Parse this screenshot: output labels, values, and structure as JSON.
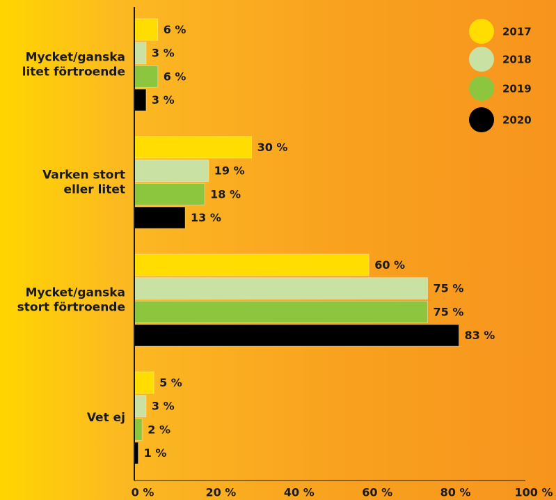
{
  "chart_data": {
    "type": "bar",
    "orientation": "horizontal",
    "categories": [
      [
        "Mycket/ganska",
        "litet förtroende"
      ],
      [
        "Varken stort",
        "eller litet"
      ],
      [
        "Mycket/ganska",
        "stort förtroende"
      ],
      [
        "Vet ej"
      ]
    ],
    "series": [
      {
        "name": "2017",
        "color": "#ffdd00",
        "values": [
          6,
          30,
          60,
          5
        ],
        "value_labels": [
          "6 %",
          "30 %",
          "60 %",
          "5 %"
        ]
      },
      {
        "name": "2018",
        "color": "#c9e2a3",
        "values": [
          3,
          19,
          75,
          3
        ],
        "value_labels": [
          "3 %",
          "19 %",
          "75 %",
          "3 %"
        ]
      },
      {
        "name": "2019",
        "color": "#8cc63f",
        "values": [
          6,
          18,
          75,
          2
        ],
        "value_labels": [
          "6 %",
          "18 %",
          "75 %",
          "2 %"
        ]
      },
      {
        "name": "2020",
        "color": "#000000",
        "values": [
          3,
          13,
          83,
          1
        ],
        "value_labels": [
          "3 %",
          "13 %",
          "83 %",
          "1 %"
        ]
      }
    ],
    "xlim": [
      0,
      100
    ],
    "xticks": [
      {
        "value": 0,
        "label": "0 %"
      },
      {
        "value": 20,
        "label": "20 %"
      },
      {
        "value": 40,
        "label": "40 %"
      },
      {
        "value": 60,
        "label": "60 %"
      },
      {
        "value": 80,
        "label": "80 %"
      },
      {
        "value": 100,
        "label": "100 %"
      }
    ],
    "legend": "upper right",
    "grid": false
  }
}
